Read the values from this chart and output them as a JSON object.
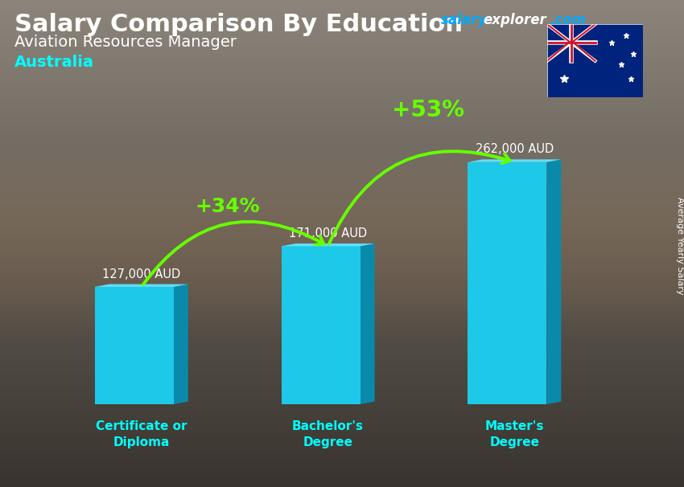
{
  "title": "Salary Comparison By Education",
  "subtitle": "Aviation Resources Manager",
  "country": "Australia",
  "watermark_salary": "salary",
  "watermark_explorer": "explorer",
  "watermark_com": ".com",
  "ylabel": "Average Yearly Salary",
  "categories": [
    "Certificate or\nDiploma",
    "Bachelor's\nDegree",
    "Master's\nDegree"
  ],
  "values": [
    127000,
    171000,
    262000
  ],
  "value_labels": [
    "127,000 AUD",
    "171,000 AUD",
    "262,000 AUD"
  ],
  "pct_labels": [
    "+34%",
    "+53%"
  ],
  "bar_color_face": "#1EC8E8",
  "bar_color_side": "#0A8AAA",
  "bar_color_top": "#60E0F8",
  "bg_top": "#8a8a7a",
  "bg_bottom": "#3a3a30",
  "title_color": "#FFFFFF",
  "subtitle_color": "#FFFFFF",
  "country_color": "#00FFFF",
  "value_label_color": "#FFFFFF",
  "pct_color": "#66FF00",
  "tick_color": "#00FFFF",
  "arrow_color": "#66FF00",
  "ylabel_color": "#FFFFFF",
  "watermark_salary_color": "#00AAFF",
  "watermark_explorer_color": "#FFFFFF",
  "watermark_com_color": "#00AAFF",
  "bar_positions": [
    1.3,
    3.9,
    6.5
  ],
  "bar_width": 1.1,
  "bar_depth": 0.2,
  "xlim": [
    0,
    8.2
  ],
  "ylim": [
    0,
    10.5
  ],
  "max_bar_height": 9.0
}
